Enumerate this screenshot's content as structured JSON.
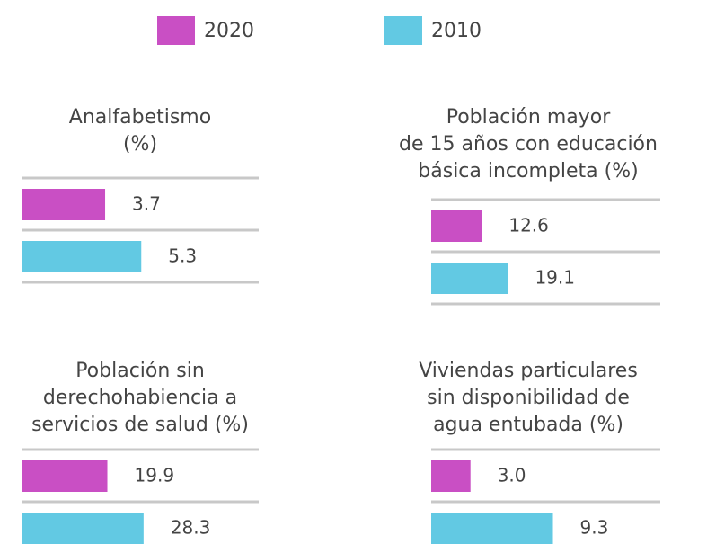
{
  "chart_data": [
    {
      "type": "bar",
      "title": [
        "Analfabetismo",
        "(%)"
      ],
      "xlim": [
        0,
        10.5
      ],
      "series": [
        {
          "name": "2020",
          "color": "#c94fc4",
          "values": [
            3.7
          ]
        },
        {
          "name": "2010",
          "color": "#62c9e3",
          "values": [
            5.3
          ]
        }
      ]
    },
    {
      "type": "bar",
      "title": [
        "Población mayor",
        "de 15 años con educación",
        "básica incompleta (%)"
      ],
      "xlim": [
        0,
        57
      ],
      "series": [
        {
          "name": "2020",
          "color": "#c94fc4",
          "values": [
            12.6
          ]
        },
        {
          "name": "2010",
          "color": "#62c9e3",
          "values": [
            19.1
          ]
        }
      ]
    },
    {
      "type": "bar",
      "title": [
        "Población sin",
        "derechohabiencia a",
        "servicios de salud (%)"
      ],
      "xlim": [
        0,
        55
      ],
      "series": [
        {
          "name": "2020",
          "color": "#c94fc4",
          "values": [
            19.9
          ]
        },
        {
          "name": "2010",
          "color": "#62c9e3",
          "values": [
            28.3
          ]
        }
      ]
    },
    {
      "type": "bar",
      "title": [
        "Viviendas particulares",
        "sin disponibilidad de",
        "agua entubada (%)"
      ],
      "xlim": [
        0,
        17.5
      ],
      "series": [
        {
          "name": "2020",
          "color": "#c94fc4",
          "values": [
            3
          ],
          "value_labels": [
            "3.0"
          ]
        },
        {
          "name": "2010",
          "color": "#62c9e3",
          "values": [
            9.3
          ]
        }
      ]
    }
  ]
}
